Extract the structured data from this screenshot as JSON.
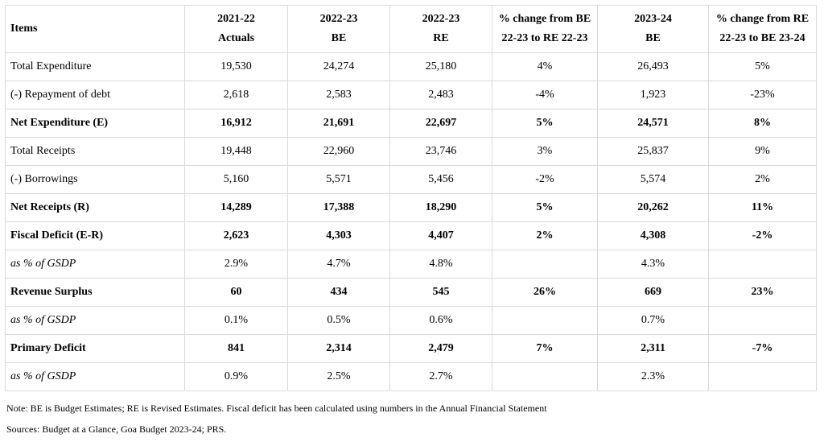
{
  "table": {
    "headers": [
      {
        "lines": [
          "Items"
        ]
      },
      {
        "lines": [
          "2021-22",
          "Actuals"
        ]
      },
      {
        "lines": [
          "2022-23",
          "BE"
        ]
      },
      {
        "lines": [
          "2022-23",
          "RE"
        ]
      },
      {
        "lines": [
          "% change from BE",
          "22-23 to RE 22-23"
        ]
      },
      {
        "lines": [
          "2023-24",
          "BE"
        ]
      },
      {
        "lines": [
          "% change from RE",
          "22-23 to BE 23-24"
        ]
      }
    ],
    "rows": [
      {
        "style": "normal",
        "cells": [
          "Total Expenditure",
          "19,530",
          "24,274",
          "25,180",
          "4%",
          "26,493",
          "5%"
        ]
      },
      {
        "style": "normal",
        "cells": [
          "(-) Repayment of debt",
          "2,618",
          "2,583",
          "2,483",
          "-4%",
          "1,923",
          "-23%"
        ]
      },
      {
        "style": "bold",
        "cells": [
          "Net Expenditure (E)",
          "16,912",
          "21,691",
          "22,697",
          "5%",
          "24,571",
          "8%"
        ]
      },
      {
        "style": "normal",
        "cells": [
          "Total Receipts",
          "19,448",
          "22,960",
          "23,746",
          "3%",
          "25,837",
          "9%"
        ]
      },
      {
        "style": "normal",
        "cells": [
          "(-) Borrowings",
          "5,160",
          "5,571",
          "5,456",
          "-2%",
          "5,574",
          "2%"
        ]
      },
      {
        "style": "bold",
        "cells": [
          "Net Receipts (R)",
          "14,289",
          "17,388",
          "18,290",
          "5%",
          "20,262",
          "11%"
        ]
      },
      {
        "style": "bold",
        "cells": [
          "Fiscal Deficit (E-R)",
          "2,623",
          "4,303",
          "4,407",
          "2%",
          "4,308",
          "-2%"
        ]
      },
      {
        "style": "italic",
        "cells": [
          "as % of GSDP",
          "2.9%",
          "4.7%",
          "4.8%",
          "",
          "4.3%",
          ""
        ]
      },
      {
        "style": "bold",
        "cells": [
          "Revenue Surplus",
          "60",
          "434",
          "545",
          "26%",
          "669",
          "23%"
        ]
      },
      {
        "style": "italic",
        "cells": [
          "as % of GSDP",
          "0.1%",
          "0.5%",
          "0.6%",
          "",
          "0.7%",
          ""
        ]
      },
      {
        "style": "bold",
        "cells": [
          "Primary Deficit",
          "841",
          "2,314",
          "2,479",
          "7%",
          "2,311",
          "-7%"
        ]
      },
      {
        "style": "italic",
        "cells": [
          "as % of GSDP",
          "0.9%",
          "2.5%",
          "2.7%",
          "",
          "2.3%",
          ""
        ]
      }
    ]
  },
  "note": "Note: BE is Budget Estimates; RE is Revised Estimates.   Fiscal deficit has been calculated using numbers in the Annual Financial Statement",
  "sources": "Sources: Budget at a Glance, Goa Budget 2023-24; PRS."
}
